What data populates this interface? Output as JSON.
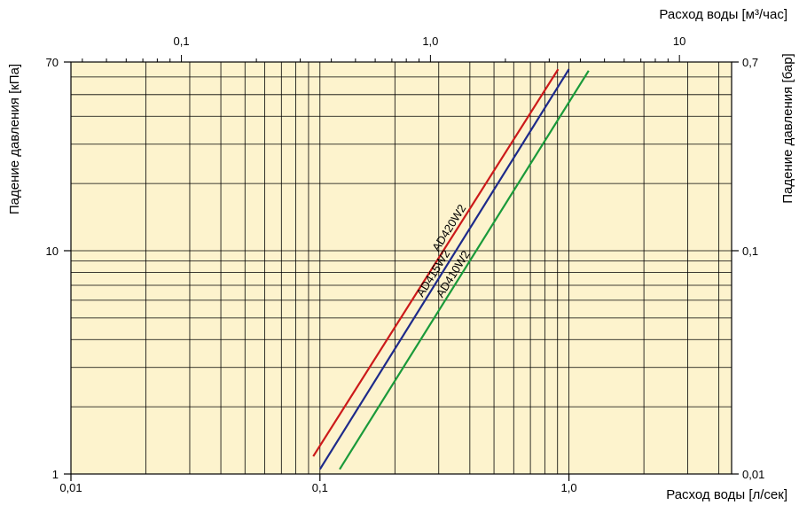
{
  "chart_data": {
    "type": "line",
    "title": "",
    "x_scale": "log",
    "y_scale": "log",
    "xlabel": "Расход воды [л/сек]",
    "ylabel": "Падение давления [кПа]",
    "x2label": "Расход воды [м³/час]",
    "y2label": "Падение давления [бар]",
    "xlim": [
      0.01,
      4.5
    ],
    "ylim": [
      1,
      70
    ],
    "x2lim": [
      0.036,
      16.2
    ],
    "y2lim": [
      0.01,
      0.7
    ],
    "grid": true,
    "background_color": "#fdf3cd",
    "x_ticks": [
      {
        "value": 0.01,
        "label": "0,01"
      },
      {
        "value": 0.1,
        "label": "0,1"
      },
      {
        "value": 1.0,
        "label": "1,0"
      }
    ],
    "x2_ticks": [
      {
        "value": 0.1,
        "label": "0,1"
      },
      {
        "value": 1.0,
        "label": "1,0"
      },
      {
        "value": 10,
        "label": "10"
      }
    ],
    "y_ticks": [
      {
        "value": 1,
        "label": "1"
      },
      {
        "value": 10,
        "label": "10"
      },
      {
        "value": 70,
        "label": "70"
      }
    ],
    "y2_ticks": [
      {
        "value": 0.01,
        "label": "0,01"
      },
      {
        "value": 0.1,
        "label": "0,1"
      },
      {
        "value": 0.7,
        "label": "0,7"
      }
    ],
    "series": [
      {
        "name": "AD420W2",
        "color": "#cc1a1a",
        "x": [
          0.094,
          0.905
        ],
        "y": [
          1.2,
          65
        ]
      },
      {
        "name": "AD415W2",
        "color": "#1d2a8a",
        "x": [
          0.1,
          1.0
        ],
        "y": [
          1.05,
          65
        ]
      },
      {
        "name": "AD410W2",
        "color": "#1a9a3a",
        "x": [
          0.12,
          1.2
        ],
        "y": [
          1.05,
          64
        ]
      }
    ]
  }
}
